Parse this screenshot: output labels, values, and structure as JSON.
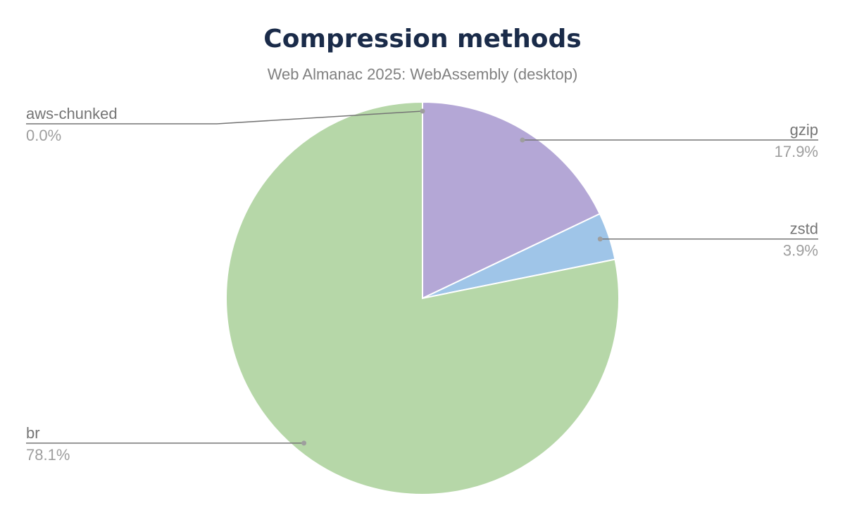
{
  "chart_data": {
    "type": "pie",
    "title": "Compression methods",
    "subtitle": "Web Almanac 2025: WebAssembly (desktop)",
    "slices": [
      {
        "label": "gzip",
        "value": 17.9,
        "display": "17.9%",
        "color": "#b4a7d6"
      },
      {
        "label": "zstd",
        "value": 3.9,
        "display": "3.9%",
        "color": "#9fc5e8"
      },
      {
        "label": "br",
        "value": 78.1,
        "display": "78.1%",
        "color": "#b6d7a8"
      },
      {
        "label": "aws-chunked",
        "value": 0.0,
        "display": "0.0%",
        "color": "#f9cb9c"
      }
    ],
    "start": "top",
    "direction": "clockwise",
    "legend": "none (leader-line labels)"
  }
}
